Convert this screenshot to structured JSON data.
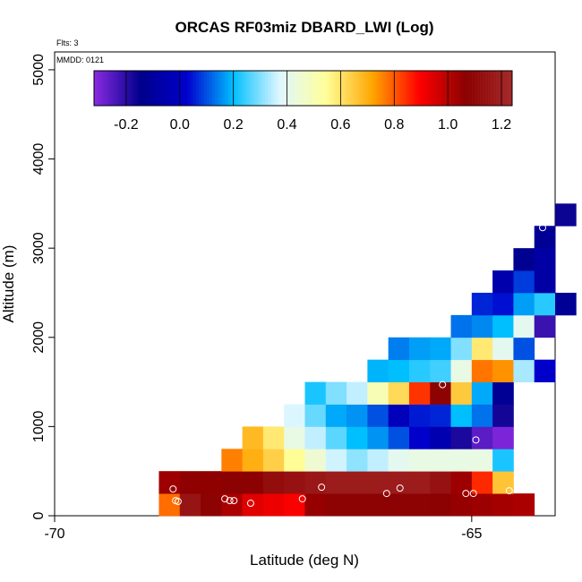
{
  "chart_data": {
    "type": "heatmap",
    "title": "ORCAS RF03miz DBARD_LWI (Log)",
    "xlabel": "Latitude (deg N)",
    "ylabel": "Altitude (m)",
    "xlim": [
      -70,
      -64
    ],
    "ylim": [
      0,
      5200
    ],
    "x_ticks": [
      -70,
      -65
    ],
    "y_ticks": [
      0,
      1000,
      2000,
      3000,
      4000,
      5000
    ],
    "annotations": {
      "flights": "Flts: 3",
      "date": "MMDD: 0121"
    },
    "colorbar": {
      "range": [
        -0.32,
        1.24
      ],
      "ticks": [
        -0.2,
        0.0,
        0.2,
        0.4,
        0.6,
        0.8,
        1.0,
        1.2
      ],
      "tick_labels": [
        "-0.2",
        "0.0",
        "0.2",
        "0.4",
        "0.6",
        "0.8",
        "1.0",
        "1.2"
      ],
      "colors": [
        "#8a2be2",
        "#00008b",
        "#0000cd",
        "#00bfff",
        "#e0f7ff",
        "#ffff99",
        "#ffa500",
        "#ff0000",
        "#8b0000",
        "#a52a2a"
      ]
    },
    "cell_size": {
      "lat": 0.25,
      "alt": 250
    },
    "cells": [
      [
        -68.625,
        125,
        0.78
      ],
      [
        -68.375,
        125,
        1.15
      ],
      [
        -68.125,
        125,
        1.08
      ],
      [
        -67.875,
        125,
        1.02
      ],
      [
        -67.625,
        125,
        0.94
      ],
      [
        -67.375,
        125,
        0.92
      ],
      [
        -67.125,
        125,
        0.9
      ],
      [
        -66.875,
        125,
        1.05
      ],
      [
        -66.625,
        125,
        1.08
      ],
      [
        -66.375,
        125,
        1.08
      ],
      [
        -66.125,
        125,
        1.08
      ],
      [
        -65.875,
        125,
        1.08
      ],
      [
        -65.625,
        125,
        1.08
      ],
      [
        -65.375,
        125,
        1.07
      ],
      [
        -65.125,
        125,
        1.05
      ],
      [
        -64.875,
        125,
        1.04
      ],
      [
        -64.625,
        125,
        1.03
      ],
      [
        -64.375,
        125,
        1.02
      ],
      [
        -68.625,
        375,
        1.04
      ],
      [
        -68.375,
        375,
        1.06
      ],
      [
        -68.125,
        375,
        1.06
      ],
      [
        -67.875,
        375,
        1.07
      ],
      [
        -67.625,
        375,
        1.07
      ],
      [
        -67.375,
        375,
        1.12
      ],
      [
        -67.125,
        375,
        1.14
      ],
      [
        -66.875,
        375,
        1.16
      ],
      [
        -66.625,
        375,
        1.18
      ],
      [
        -66.375,
        375,
        1.18
      ],
      [
        -66.125,
        375,
        1.18
      ],
      [
        -65.875,
        375,
        1.18
      ],
      [
        -65.625,
        375,
        1.18
      ],
      [
        -65.375,
        375,
        1.14
      ],
      [
        -65.125,
        375,
        1.04
      ],
      [
        -64.875,
        375,
        0.85
      ],
      [
        -64.625,
        375,
        0.66
      ],
      [
        -67.875,
        625,
        0.76
      ],
      [
        -67.625,
        625,
        0.7
      ],
      [
        -67.375,
        625,
        0.64
      ],
      [
        -67.125,
        625,
        0.55
      ],
      [
        -66.875,
        625,
        0.45
      ],
      [
        -66.625,
        625,
        0.36
      ],
      [
        -66.375,
        625,
        0.31
      ],
      [
        -66.125,
        625,
        0.35
      ],
      [
        -65.875,
        625,
        0.4
      ],
      [
        -65.625,
        625,
        0.42
      ],
      [
        -65.375,
        625,
        0.42
      ],
      [
        -65.125,
        625,
        0.42
      ],
      [
        -64.875,
        625,
        0.42
      ],
      [
        -64.625,
        625,
        0.22
      ],
      [
        -67.625,
        875,
        0.68
      ],
      [
        -67.375,
        875,
        0.59
      ],
      [
        -67.125,
        875,
        0.42
      ],
      [
        -66.875,
        875,
        0.35
      ],
      [
        -66.625,
        875,
        0.27
      ],
      [
        -66.375,
        875,
        0.2
      ],
      [
        -66.125,
        875,
        0.16
      ],
      [
        -65.875,
        875,
        0.1
      ],
      [
        -65.625,
        875,
        0.02
      ],
      [
        -65.375,
        875,
        -0.05
      ],
      [
        -65.125,
        875,
        -0.18
      ],
      [
        -64.875,
        875,
        -0.26
      ],
      [
        -64.625,
        875,
        -0.3
      ],
      [
        -67.125,
        1125,
        0.37
      ],
      [
        -66.875,
        1125,
        0.28
      ],
      [
        -66.625,
        1125,
        0.18
      ],
      [
        -66.375,
        1125,
        0.16
      ],
      [
        -66.125,
        1125,
        0.1
      ],
      [
        -65.875,
        1125,
        -0.02
      ],
      [
        -65.625,
        1125,
        0.05
      ],
      [
        -65.375,
        1125,
        0.06
      ],
      [
        -65.125,
        1125,
        0.2
      ],
      [
        -64.875,
        1125,
        0.13
      ],
      [
        -64.625,
        1125,
        -0.17
      ],
      [
        -66.875,
        1375,
        0.22
      ],
      [
        -66.625,
        1375,
        0.3
      ],
      [
        -66.375,
        1375,
        0.35
      ],
      [
        -66.125,
        1375,
        0.5
      ],
      [
        -65.875,
        1375,
        0.62
      ],
      [
        -65.625,
        1375,
        0.84
      ],
      [
        -65.375,
        1375,
        1.08
      ],
      [
        -65.125,
        1375,
        0.65
      ],
      [
        -64.875,
        1375,
        0.18
      ],
      [
        -64.625,
        1375,
        -0.12
      ],
      [
        -66.125,
        1625,
        0.19
      ],
      [
        -65.875,
        1625,
        0.2
      ],
      [
        -65.625,
        1625,
        0.23
      ],
      [
        -65.375,
        1625,
        0.25
      ],
      [
        -65.125,
        1625,
        0.42
      ],
      [
        -64.875,
        1625,
        0.77
      ],
      [
        -64.625,
        1625,
        0.74
      ],
      [
        -64.375,
        1625,
        0.33
      ],
      [
        -64.125,
        1625,
        0.02
      ],
      [
        -65.875,
        1875,
        0.14
      ],
      [
        -65.625,
        1875,
        0.17
      ],
      [
        -65.375,
        1875,
        0.18
      ],
      [
        -65.125,
        1875,
        0.3
      ],
      [
        -64.875,
        1875,
        0.59
      ],
      [
        -64.625,
        1875,
        0.4
      ],
      [
        -64.375,
        1875,
        0.1
      ],
      [
        -65.125,
        2125,
        0.13
      ],
      [
        -64.875,
        2125,
        0.15
      ],
      [
        -64.625,
        2125,
        0.2
      ],
      [
        -64.375,
        2125,
        0.4
      ],
      [
        -64.125,
        2125,
        -0.22
      ],
      [
        -64.875,
        2375,
        0.06
      ],
      [
        -64.625,
        2375,
        0.04
      ],
      [
        -64.375,
        2375,
        0.17
      ],
      [
        -64.125,
        2375,
        0.23
      ],
      [
        -63.875,
        2375,
        -0.12
      ],
      [
        -64.625,
        2625,
        -0.06
      ],
      [
        -64.375,
        2625,
        0.08
      ],
      [
        -64.125,
        2625,
        -0.08
      ],
      [
        -64.375,
        2875,
        -0.13
      ],
      [
        -64.125,
        2875,
        -0.08
      ],
      [
        -64.125,
        3125,
        -0.12
      ],
      [
        -63.875,
        3375,
        -0.16
      ]
    ],
    "points": [
      [
        -68.58,
        300
      ],
      [
        -68.55,
        170
      ],
      [
        -68.52,
        160
      ],
      [
        -67.96,
        190
      ],
      [
        -67.9,
        170
      ],
      [
        -67.85,
        170
      ],
      [
        -67.65,
        140
      ],
      [
        -67.03,
        190
      ],
      [
        -66.8,
        320
      ],
      [
        -66.02,
        250
      ],
      [
        -65.86,
        310
      ],
      [
        -65.35,
        1470
      ],
      [
        -65.07,
        250
      ],
      [
        -64.98,
        250
      ],
      [
        -64.95,
        850
      ],
      [
        -64.55,
        280
      ],
      [
        -64.15,
        3230
      ]
    ]
  }
}
